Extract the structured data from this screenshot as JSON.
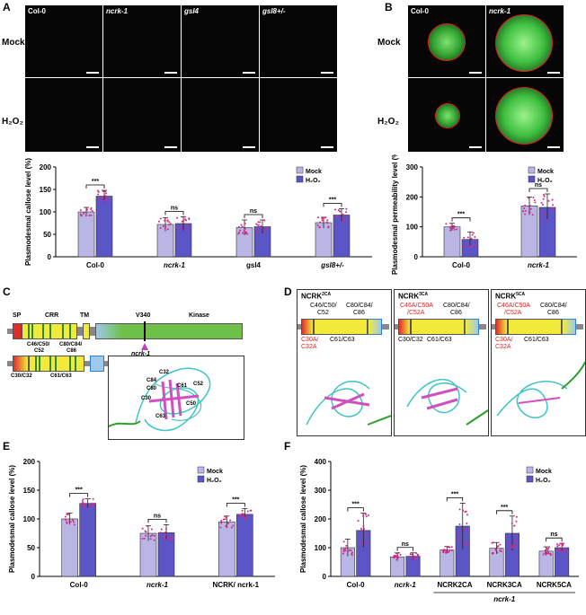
{
  "panels": {
    "A": "A",
    "B": "B",
    "C": "C",
    "D": "D",
    "E": "E",
    "F": "F"
  },
  "panelA": {
    "columns": [
      "Col-0",
      "ncrk-1",
      "gsl4",
      "gsl8+/-"
    ],
    "rows": [
      "Mock",
      "H₂O₂"
    ]
  },
  "panelB": {
    "columns": [
      "Col-0",
      "ncrk-1"
    ],
    "rows": [
      "Mock",
      "H₂O₂"
    ]
  },
  "panelC": {
    "domains": [
      "SP",
      "CRR",
      "TM",
      "Kinase"
    ],
    "v340": "V340",
    "mutant": "ncrk-1",
    "cys_top1": "C46/C50/",
    "cys_top1b": "C52",
    "cys_top2": "C80/C84/",
    "cys_top2b": "C86",
    "cys_bottom1": "C30/C32",
    "cys_bottom2": "C61/C63",
    "structure_labels": [
      "C32",
      "C84",
      "C80",
      "C30",
      "C63",
      "C61",
      "C52",
      "C50"
    ]
  },
  "panelD": {
    "boxes": [
      {
        "title": "NCRK",
        "sup": "2CA",
        "top1": "C46/C50/",
        "top1b": "C52",
        "top2": "C80/C84/",
        "top2b": "C86",
        "bot1": "C30A/",
        "bot1b": "C32A",
        "bot2": "C61/C63"
      },
      {
        "title": "NCRK",
        "sup": "3CA",
        "top1": "C46A/C50A",
        "top1b": "/C52A",
        "top2": "C80/C84/",
        "top2b": "C86",
        "bot1": "C30/C32",
        "bot1b": "",
        "bot2": "C61/C63"
      },
      {
        "title": "NCRK",
        "sup": "5CA",
        "top1": "C46A/C50A",
        "top1b": "/C52A",
        "top2": "C80/C84/",
        "top2b": "C86",
        "bot1": "C30A/",
        "bot1b": "C32A",
        "bot2": "C61/C63"
      }
    ]
  },
  "chart_data": [
    {
      "id": "A",
      "type": "bar",
      "ylabel": "Plasmodesmal callose level (%)",
      "ylim": [
        0,
        200
      ],
      "yticks": [
        0,
        50,
        100,
        150,
        200
      ],
      "categories": [
        "Col-0",
        "ncrk-1",
        "gsl4",
        "gsl8+/-"
      ],
      "series": [
        {
          "name": "Mock",
          "values": [
            100,
            72,
            65,
            76
          ],
          "err": [
            10,
            15,
            17,
            12
          ]
        },
        {
          "name": "H₂O₂",
          "values": [
            135,
            74,
            67,
            93
          ],
          "err": [
            13,
            15,
            15,
            14
          ]
        }
      ],
      "sig": [
        "***",
        "ns",
        "ns",
        "***"
      ],
      "legend": [
        "Mock",
        "H₂O₂"
      ]
    },
    {
      "id": "B",
      "type": "bar",
      "ylabel": "Plasmodesmal permeability level (%)",
      "ylim": [
        0,
        300
      ],
      "yticks": [
        0,
        100,
        200,
        300
      ],
      "categories": [
        "Col-0",
        "ncrk-1"
      ],
      "series": [
        {
          "name": "Mock",
          "values": [
            100,
            170
          ],
          "err": [
            12,
            30
          ]
        },
        {
          "name": "H₂O₂",
          "values": [
            58,
            165
          ],
          "err": [
            25,
            45
          ]
        }
      ],
      "sig": [
        "***",
        "ns"
      ],
      "legend": [
        "Mock",
        "H₂O₂"
      ]
    },
    {
      "id": "E",
      "type": "bar",
      "ylabel": "Plasmodesmal callose level (%)",
      "ylim": [
        0,
        200
      ],
      "yticks": [
        0,
        50,
        100,
        150,
        200
      ],
      "categories": [
        "Col-0",
        "ncrk-1",
        "NCRK/ ncrk-1"
      ],
      "series": [
        {
          "name": "Mock",
          "values": [
            100,
            75,
            95
          ],
          "err": [
            10,
            13,
            10
          ]
        },
        {
          "name": "H₂O₂",
          "values": [
            127,
            76,
            108
          ],
          "err": [
            8,
            14,
            10
          ]
        }
      ],
      "sig": [
        "***",
        "ns",
        "***"
      ],
      "legend": [
        "Mock",
        "H₂O₂"
      ]
    },
    {
      "id": "F",
      "type": "bar",
      "ylabel": "Plasmodesmal callose level (%)",
      "ylim": [
        0,
        400
      ],
      "yticks": [
        0,
        100,
        200,
        300,
        400
      ],
      "categories": [
        "Col-0",
        "ncrk-1",
        "NCRK2CA",
        "NCRK3CA",
        "NCRK5CA"
      ],
      "series": [
        {
          "name": "Mock",
          "values": [
            100,
            68,
            92,
            98,
            88
          ],
          "err": [
            30,
            14,
            12,
            20,
            15
          ]
        },
        {
          "name": "H₂O₂",
          "values": [
            160,
            70,
            175,
            150,
            100
          ],
          "err": [
            60,
            12,
            80,
            60,
            15
          ]
        }
      ],
      "sig": [
        "***",
        "ns",
        "***",
        "***",
        "ns"
      ],
      "group_label": "ncrk-1",
      "legend": [
        "Mock",
        "H₂O₂"
      ]
    }
  ],
  "colors": {
    "mock": "#b9b6e6",
    "h2o2": "#5b55c7",
    "dots": "#d6287f",
    "sp": "#e22b2b",
    "crr": "#f2ea3b",
    "tm": "#f2ea3b",
    "kinase": "#6fc04a",
    "tmbox": "#9ec9ea",
    "blue": "#2e7fd8",
    "green_glow": "#4ad84a",
    "red_circle": "#e11f1f"
  }
}
